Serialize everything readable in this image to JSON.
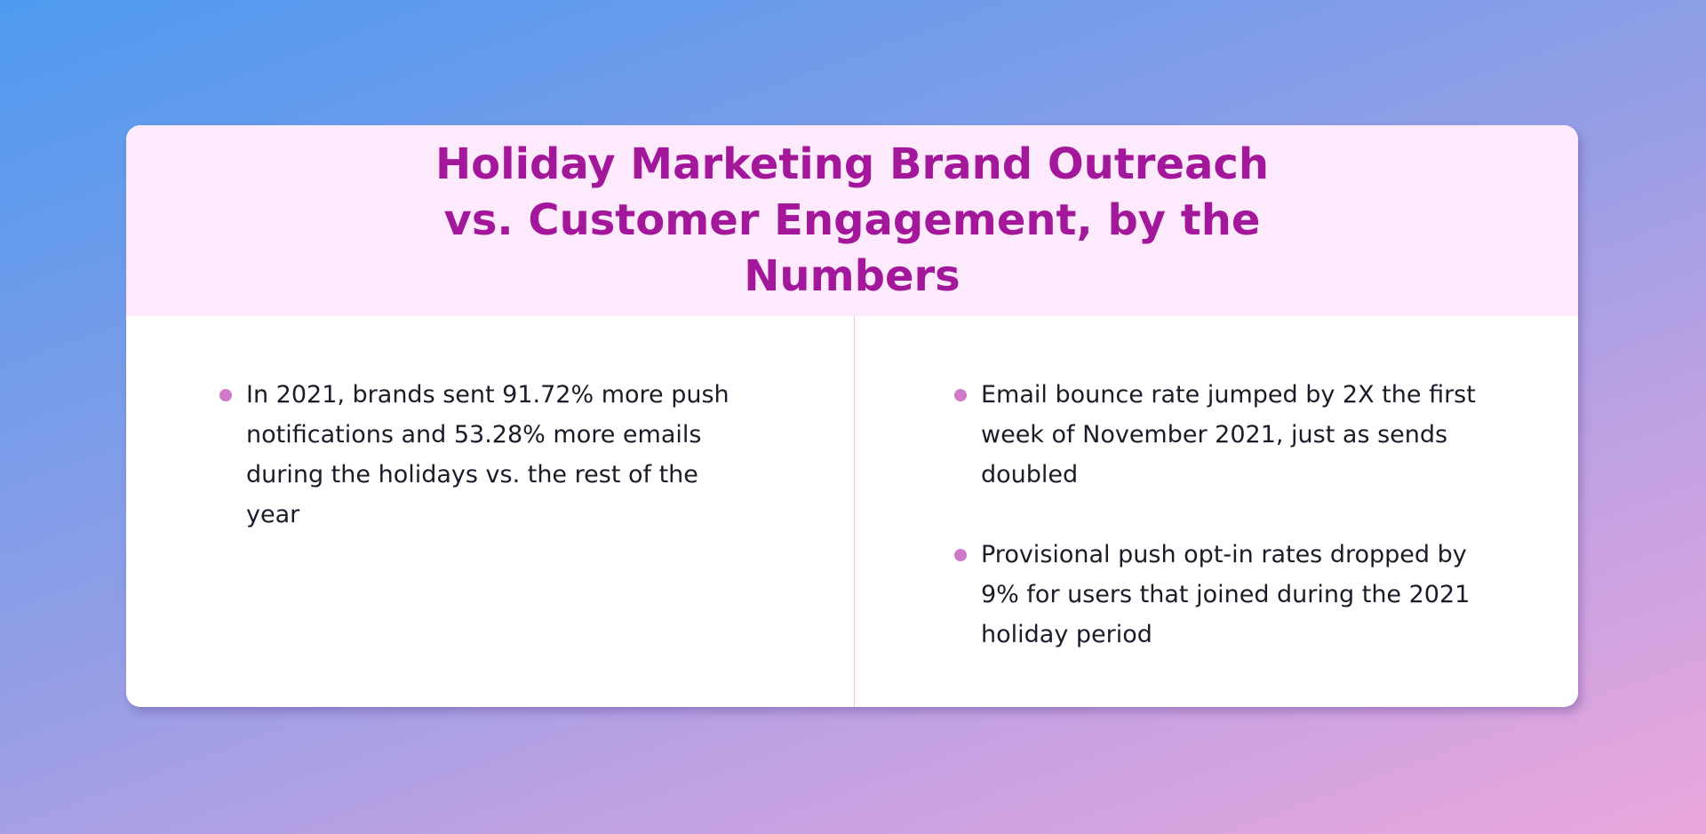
{
  "header": {
    "title": "Holiday Marketing Brand Outreach vs. Customer Engagement, by the Numbers"
  },
  "left_column": {
    "items": [
      "In 2021, brands sent 91.72% more push notifications and 53.28% more emails during the holidays vs. the rest of the year"
    ]
  },
  "right_column": {
    "items": [
      "Email bounce rate jumped by 2X the first week of November 2021, just as sends doubled",
      "Provisional push opt-in rates dropped by 9% for users that joined during the 2021 holiday period"
    ]
  }
}
